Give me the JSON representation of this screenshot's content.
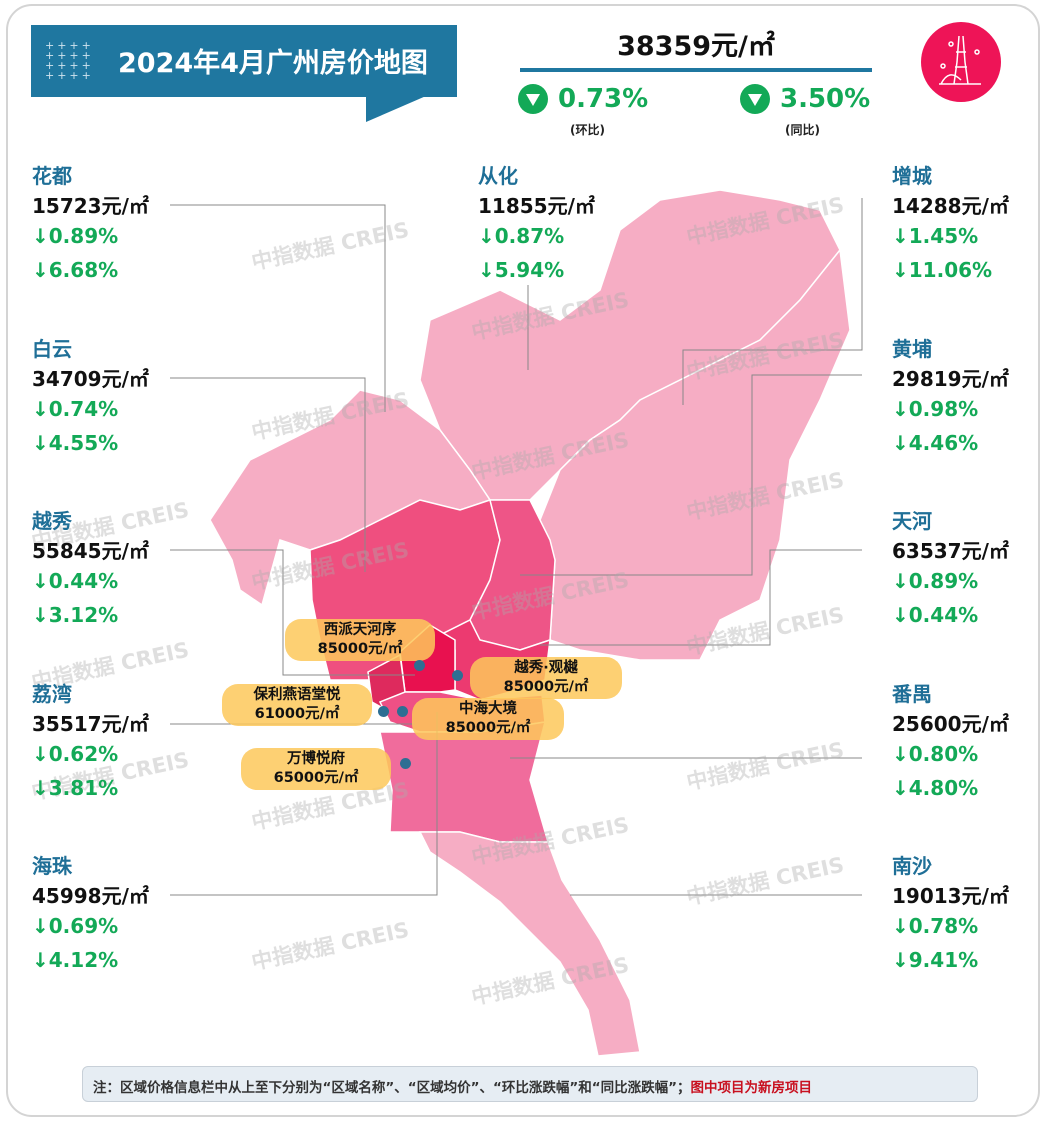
{
  "header": {
    "title": "2024年4月广州房价地图",
    "dots": "++++ ++++ ++++ ++++",
    "avg_price": "38359元/㎡",
    "mom_change": "0.73%",
    "mom_label": "(环比)",
    "yoy_change": "3.50%",
    "yoy_label": "(同比)",
    "trend": "down"
  },
  "colors": {
    "title_bg": "#1f77a0",
    "down_green": "#13a957",
    "district_name": "#1f6f97",
    "logo_bg": "#ee1457",
    "project_label": "#fdc85a"
  },
  "districts": [
    {
      "name": "花都",
      "price": "15723元/㎡",
      "mom": "↓0.89%",
      "yoy": "↓6.68%"
    },
    {
      "name": "白云",
      "price": "34709元/㎡",
      "mom": "↓0.74%",
      "yoy": "↓4.55%"
    },
    {
      "name": "越秀",
      "price": "55845元/㎡",
      "mom": "↓0.44%",
      "yoy": "↓3.12%"
    },
    {
      "name": "荔湾",
      "price": "35517元/㎡",
      "mom": "↓0.62%",
      "yoy": "↓3.81%"
    },
    {
      "name": "海珠",
      "price": "45998元/㎡",
      "mom": "↓0.69%",
      "yoy": "↓4.12%"
    },
    {
      "name": "从化",
      "price": "11855元/㎡",
      "mom": "↓0.87%",
      "yoy": "↓5.94%"
    },
    {
      "name": "增城",
      "price": "14288元/㎡",
      "mom": "↓1.45%",
      "yoy": "↓11.06%"
    },
    {
      "name": "黄埔",
      "price": "29819元/㎡",
      "mom": "↓0.98%",
      "yoy": "↓4.46%"
    },
    {
      "name": "天河",
      "price": "63537元/㎡",
      "mom": "↓0.89%",
      "yoy": "↓0.44%"
    },
    {
      "name": "番禺",
      "price": "25600元/㎡",
      "mom": "↓0.80%",
      "yoy": "↓4.80%"
    },
    {
      "name": "南沙",
      "price": "19013元/㎡",
      "mom": "↓0.78%",
      "yoy": "↓9.41%"
    }
  ],
  "projects": [
    {
      "name": "西派天河序",
      "price": "85000元/㎡"
    },
    {
      "name": "越秀·观樾",
      "price": "85000元/㎡"
    },
    {
      "name": "保利燕语堂悦",
      "price": "61000元/㎡"
    },
    {
      "name": "中海大境",
      "price": "85000元/㎡"
    },
    {
      "name": "万博悦府",
      "price": "65000元/㎡"
    }
  ],
  "watermark": "中指数据 CREIS",
  "note": {
    "text": "注：区域价格信息栏中从上至下分别为“区域名称”、“区域均价”、“环比涨跌幅”和“同比涨跌幅”；",
    "highlight": "图中项目为新房项目"
  }
}
